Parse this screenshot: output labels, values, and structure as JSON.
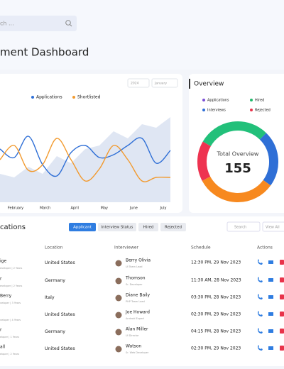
{
  "search": {
    "placeholder": "ch ..."
  },
  "header": {
    "title": "ment Dashboard"
  },
  "chart_data": {
    "type": "line",
    "legend": [
      "Applications",
      "Shortlisted"
    ],
    "filters": [
      "2024",
      "January"
    ],
    "x_labels": [
      "February",
      "March",
      "April",
      "May",
      "June",
      "July"
    ],
    "x": [
      0,
      1,
      2,
      3,
      4,
      5,
      6,
      7,
      8,
      9,
      10,
      11,
      12
    ],
    "ylim": [
      0,
      135
    ],
    "series": [
      {
        "name": "Applications",
        "color": "#2f6fd6",
        "values": [
          75,
          63,
          93,
          53,
          37,
          70,
          80,
          63,
          67,
          80,
          90,
          55,
          73
        ]
      },
      {
        "name": "Shortlisted",
        "color": "#f29a2e",
        "values": [
          60,
          80,
          45,
          53,
          90,
          60,
          30,
          47,
          80,
          60,
          30,
          35,
          35
        ]
      }
    ],
    "area": {
      "color": "#dfe6f3",
      "values": [
        40,
        35,
        50,
        40,
        65,
        55,
        75,
        80,
        100,
        90,
        110,
        105,
        120
      ]
    }
  },
  "overview": {
    "title": "Overview",
    "legend": [
      {
        "name": "Applications",
        "color": "#7b4fd6"
      },
      {
        "name": "Hired",
        "color": "#1fb86a"
      },
      {
        "name": "Interviews",
        "color": "#2f6fd6"
      },
      {
        "name": "Rejected",
        "color": "#e8334a"
      }
    ],
    "chart_data": {
      "type": "donut",
      "values": [
        45,
        35,
        50,
        25
      ],
      "colors": [
        "#22c07a",
        "#2f6fd6",
        "#f7891f",
        "#ee3350"
      ]
    },
    "center_label": "Total Overview",
    "total": "155"
  },
  "table": {
    "title": "cations",
    "tabs": [
      "Applicant",
      "Interview Status",
      "Hired",
      "Rejected"
    ],
    "search": "Search",
    "filter": "View All",
    "columns": [
      "Location",
      "Interviewer",
      "Schedule",
      "Actions"
    ],
    "rows": [
      {
        "name": "ige",
        "detail": "eveloper | 2 Years",
        "location": "United States",
        "interviewer": "Berry Olivia",
        "role": "UI Team Lead",
        "schedule": "12:30 PM, 29 Nov 2023"
      },
      {
        "name": "r",
        "detail": "eveloper | 2 Years",
        "location": "Germany",
        "interviewer": "Thomson",
        "role": "Sr. Developer",
        "schedule": "11:30 AM, 28 Nov 2023"
      },
      {
        "name": "Berry",
        "detail": "veloper | 3 Years",
        "location": "Italy",
        "interviewer": "Diane Baily",
        "role": "PHP Team Lead",
        "schedule": "03:30 PM, 28 Nov 2023"
      },
      {
        "detail": "veloper | 4 Years",
        "location": "United States",
        "interviewer": "Joe Howard",
        "role": "Android Expert",
        "schedule": "02:30 PM, 29 Nov 2023"
      },
      {
        "name": "r",
        "detail": "eloper | 1 Years",
        "location": "Germany",
        "interviewer": "Alan Miller",
        "role": "UI Director",
        "schedule": "04:15 PM, 28 Nov 2023"
      },
      {
        "name": "all",
        "detail": "eloper | 2 Years",
        "location": "United States",
        "interviewer": "Watson",
        "role": "Sr. Web Developer",
        "schedule": "02:30 PM, 29 Nov 2023"
      }
    ]
  }
}
